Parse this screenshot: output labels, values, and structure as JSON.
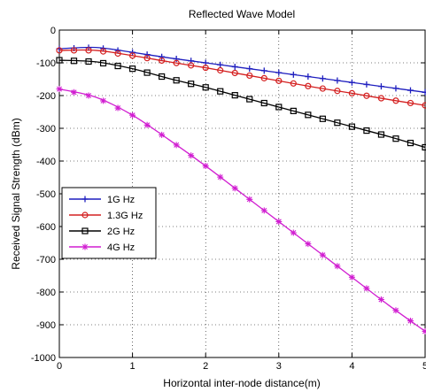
{
  "chart_data": {
    "type": "line",
    "title": "Reflected Wave Model",
    "xlabel": "Horizontal inter-node distance(m)",
    "ylabel": "Received Signal Strength (dBm)",
    "xlim": [
      0,
      5
    ],
    "ylim": [
      -1000,
      0
    ],
    "xticks": [
      0,
      1,
      2,
      3,
      4,
      5
    ],
    "yticks": [
      0,
      -100,
      -200,
      -300,
      -400,
      -500,
      -600,
      -700,
      -800,
      -900,
      -1000
    ],
    "grid": true,
    "legend_position": "middle-left",
    "series": [
      {
        "name": "1G Hz",
        "color": "#1f1fbf",
        "marker": "plus",
        "x": [
          0,
          0.5,
          1,
          1.5,
          2,
          2.5,
          3,
          3.5,
          4,
          4.5,
          5
        ],
        "y": [
          -57,
          -53,
          -68,
          -85,
          -100,
          -115,
          -130,
          -145,
          -160,
          -175,
          -190
        ]
      },
      {
        "name": "1.3G Hz",
        "color": "#d42020",
        "marker": "circle",
        "x": [
          0,
          0.5,
          1,
          1.5,
          2,
          2.5,
          3,
          3.5,
          4,
          4.5,
          5
        ],
        "y": [
          -62,
          -62,
          -78,
          -97,
          -115,
          -135,
          -155,
          -175,
          -193,
          -212,
          -230
        ]
      },
      {
        "name": "2G Hz",
        "color": "#000000",
        "marker": "square",
        "x": [
          0,
          0.5,
          1,
          1.5,
          2,
          2.5,
          3,
          3.5,
          4,
          4.5,
          5
        ],
        "y": [
          -92,
          -97,
          -118,
          -148,
          -175,
          -205,
          -235,
          -265,
          -295,
          -325,
          -358
        ]
      },
      {
        "name": "4G Hz",
        "color": "#d11ed1",
        "marker": "star",
        "x": [
          0,
          0.5,
          1,
          1.5,
          2,
          2.5,
          3,
          3.5,
          4,
          4.5,
          5
        ],
        "y": [
          -180,
          -205,
          -260,
          -335,
          -415,
          -500,
          -585,
          -670,
          -755,
          -840,
          -920
        ]
      }
    ]
  }
}
